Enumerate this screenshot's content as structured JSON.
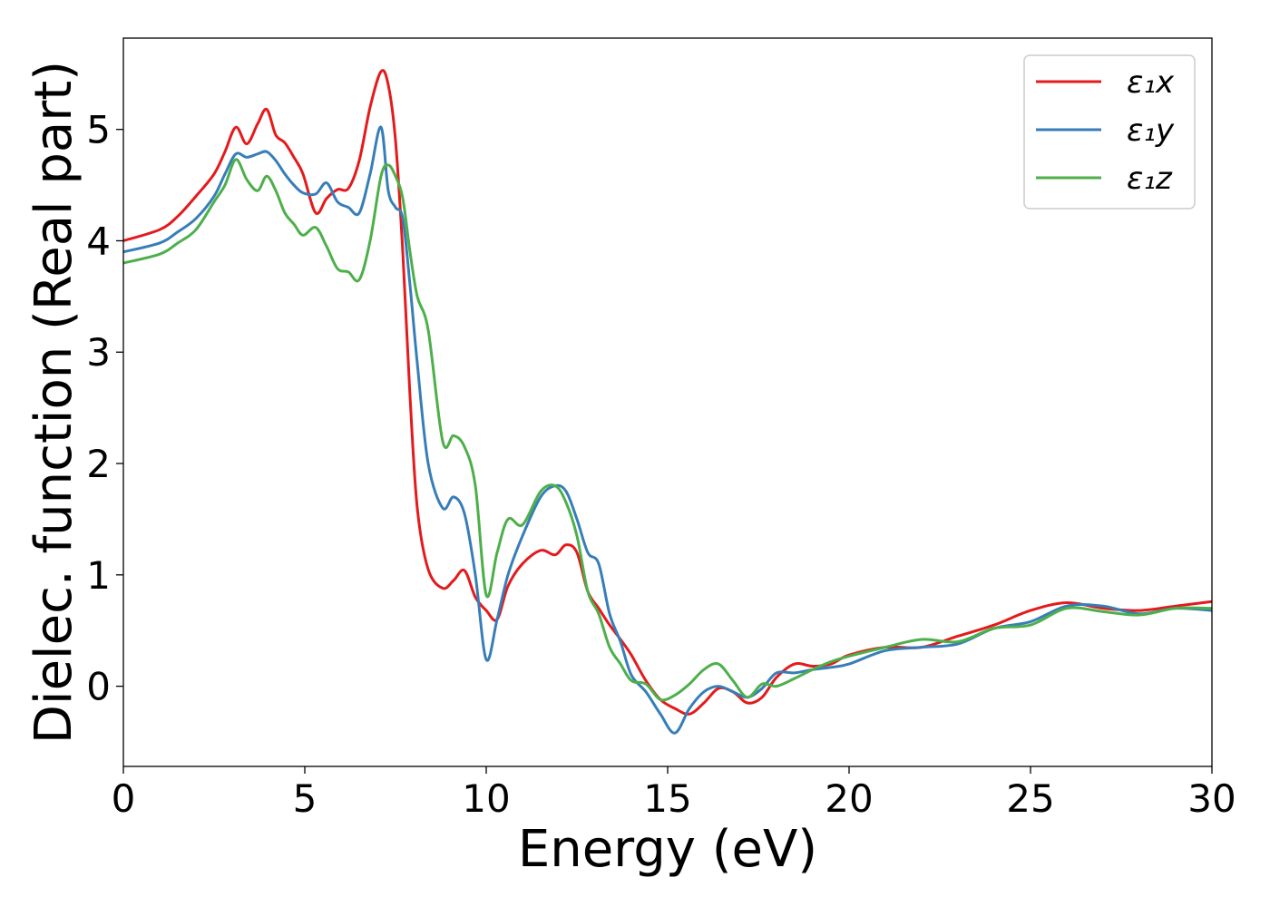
{
  "chart_data": {
    "type": "line",
    "xlabel": "Energy (eV)",
    "ylabel": "Dielec. function (Real part)",
    "xlim": [
      0,
      30
    ],
    "ylim": [
      -0.72,
      5.82
    ],
    "xticks": [
      0,
      5,
      10,
      15,
      20,
      25,
      30
    ],
    "xtick_labels": [
      "0",
      "5",
      "10",
      "15",
      "20",
      "25",
      "30"
    ],
    "yticks": [
      0,
      1,
      2,
      3,
      4,
      5
    ],
    "ytick_labels": [
      "0",
      "1",
      "2",
      "3",
      "4",
      "5"
    ],
    "grid": false,
    "legend_position": "top-right",
    "series": [
      {
        "name": "ε₁x",
        "color": "#e41a1c",
        "x": [
          0,
          1,
          1.5,
          2,
          2.5,
          2.8,
          3.1,
          3.4,
          3.7,
          3.95,
          4.2,
          4.45,
          4.7,
          4.95,
          5.3,
          5.6,
          5.9,
          6.2,
          6.5,
          6.8,
          7.1,
          7.3,
          7.5,
          7.7,
          7.9,
          8.1,
          8.4,
          8.8,
          9.1,
          9.4,
          9.7,
          10.0,
          10.3,
          10.6,
          11.0,
          11.5,
          11.9,
          12.2,
          12.5,
          12.8,
          13.1,
          13.4,
          13.7,
          14.0,
          14.4,
          14.8,
          15.2,
          15.6,
          16.0,
          16.4,
          16.8,
          17.2,
          17.6,
          18.0,
          18.5,
          19.0,
          19.5,
          20,
          21,
          22,
          23,
          24,
          25,
          26,
          27,
          28,
          29,
          30
        ],
        "y": [
          4.0,
          4.1,
          4.22,
          4.4,
          4.6,
          4.8,
          5.02,
          4.87,
          5.05,
          5.18,
          4.95,
          4.88,
          4.75,
          4.6,
          4.25,
          4.38,
          4.46,
          4.47,
          4.72,
          5.2,
          5.52,
          5.4,
          4.9,
          3.9,
          2.6,
          1.6,
          1.05,
          0.88,
          0.95,
          1.04,
          0.8,
          0.68,
          0.6,
          0.9,
          1.1,
          1.22,
          1.18,
          1.27,
          1.2,
          0.85,
          0.7,
          0.55,
          0.42,
          0.28,
          0.05,
          -0.12,
          -0.2,
          -0.25,
          -0.15,
          -0.02,
          -0.05,
          -0.15,
          -0.1,
          0.08,
          0.2,
          0.18,
          0.2,
          0.28,
          0.35,
          0.35,
          0.45,
          0.55,
          0.68,
          0.75,
          0.7,
          0.68,
          0.72,
          0.76
        ]
      },
      {
        "name": "ε₁y",
        "color": "#377eb8",
        "x": [
          0,
          1,
          1.5,
          2,
          2.5,
          2.8,
          3.1,
          3.4,
          3.7,
          3.95,
          4.2,
          4.45,
          4.7,
          4.95,
          5.3,
          5.6,
          5.9,
          6.2,
          6.5,
          6.8,
          7.1,
          7.3,
          7.5,
          7.7,
          7.9,
          8.1,
          8.4,
          8.8,
          9.1,
          9.4,
          9.7,
          10.0,
          10.3,
          10.6,
          11.0,
          11.5,
          11.9,
          12.2,
          12.5,
          12.8,
          13.1,
          13.4,
          13.7,
          14.0,
          14.4,
          14.8,
          15.2,
          15.6,
          16.0,
          16.4,
          16.8,
          17.2,
          17.6,
          18.0,
          18.5,
          19.0,
          19.5,
          20,
          21,
          22,
          23,
          24,
          25,
          26,
          27,
          28,
          29,
          30
        ],
        "y": [
          3.9,
          3.98,
          4.08,
          4.2,
          4.4,
          4.6,
          4.78,
          4.75,
          4.78,
          4.8,
          4.72,
          4.6,
          4.5,
          4.43,
          4.42,
          4.52,
          4.35,
          4.3,
          4.25,
          4.6,
          5.02,
          4.45,
          4.3,
          4.2,
          3.6,
          2.9,
          2.0,
          1.6,
          1.7,
          1.55,
          1.0,
          0.24,
          0.6,
          1.0,
          1.35,
          1.7,
          1.8,
          1.75,
          1.5,
          1.2,
          1.1,
          0.65,
          0.4,
          0.1,
          -0.05,
          -0.25,
          -0.42,
          -0.2,
          -0.05,
          0.0,
          -0.05,
          -0.1,
          -0.02,
          0.12,
          0.12,
          0.15,
          0.17,
          0.2,
          0.32,
          0.35,
          0.38,
          0.52,
          0.58,
          0.72,
          0.72,
          0.65,
          0.7,
          0.68
        ]
      },
      {
        "name": "ε₁z",
        "color": "#4daf4a",
        "x": [
          0,
          1,
          1.5,
          2,
          2.5,
          2.8,
          3.1,
          3.4,
          3.7,
          3.95,
          4.2,
          4.45,
          4.7,
          4.95,
          5.3,
          5.6,
          5.9,
          6.2,
          6.5,
          6.8,
          7.1,
          7.3,
          7.5,
          7.7,
          7.9,
          8.1,
          8.4,
          8.8,
          9.1,
          9.4,
          9.7,
          10.0,
          10.3,
          10.6,
          11.0,
          11.5,
          11.9,
          12.2,
          12.5,
          12.8,
          13.1,
          13.4,
          13.7,
          14.0,
          14.4,
          14.8,
          15.2,
          15.6,
          16.0,
          16.4,
          16.8,
          17.2,
          17.6,
          18.0,
          18.5,
          19.0,
          19.5,
          20,
          21,
          22,
          23,
          24,
          25,
          26,
          27,
          28,
          29,
          30
        ],
        "y": [
          3.8,
          3.88,
          3.98,
          4.1,
          4.35,
          4.5,
          4.73,
          4.55,
          4.45,
          4.58,
          4.45,
          4.25,
          4.15,
          4.05,
          4.12,
          3.95,
          3.75,
          3.72,
          3.65,
          4.0,
          4.58,
          4.68,
          4.58,
          4.38,
          3.9,
          3.5,
          3.2,
          2.2,
          2.25,
          2.15,
          1.8,
          0.82,
          1.2,
          1.5,
          1.45,
          1.75,
          1.8,
          1.65,
          1.35,
          0.85,
          0.65,
          0.35,
          0.2,
          0.05,
          0.02,
          -0.12,
          -0.08,
          0.02,
          0.15,
          0.2,
          0.05,
          -0.1,
          0.02,
          0.0,
          0.07,
          0.15,
          0.22,
          0.27,
          0.35,
          0.42,
          0.4,
          0.52,
          0.55,
          0.7,
          0.67,
          0.64,
          0.7,
          0.7
        ]
      }
    ]
  }
}
